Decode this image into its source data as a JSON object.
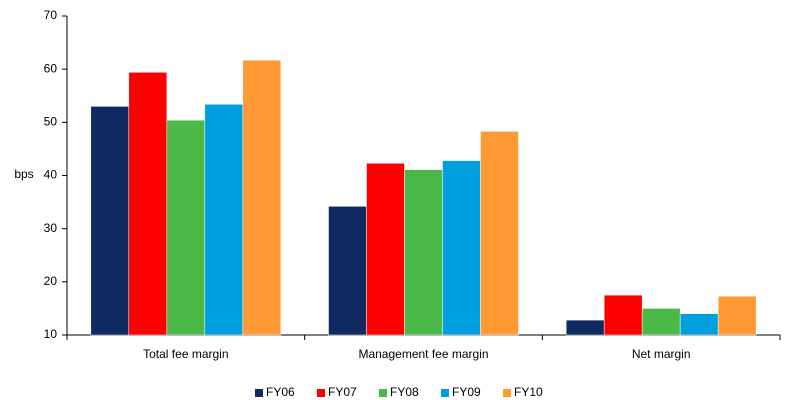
{
  "chart_data": {
    "type": "bar",
    "y_label": "bps",
    "categories": [
      "Total fee margin",
      "Management fee margin",
      "Net margin"
    ],
    "series": [
      {
        "name": "FY06",
        "color": "#0f2a60",
        "values": [
          53.0,
          34.2,
          12.8
        ]
      },
      {
        "name": "FY07",
        "color": "#ff0000",
        "values": [
          59.4,
          42.3,
          17.5
        ]
      },
      {
        "name": "FY08",
        "color": "#4cb848",
        "values": [
          50.4,
          41.1,
          15.0
        ]
      },
      {
        "name": "FY09",
        "color": "#009fe0",
        "values": [
          53.4,
          42.8,
          14.0
        ]
      },
      {
        "name": "FY10",
        "color": "#ff9933",
        "values": [
          61.7,
          48.3,
          17.3
        ]
      }
    ],
    "ylim": [
      10,
      70
    ],
    "yticks": [
      10,
      20,
      30,
      40,
      50,
      60,
      70
    ],
    "grid": false
  }
}
